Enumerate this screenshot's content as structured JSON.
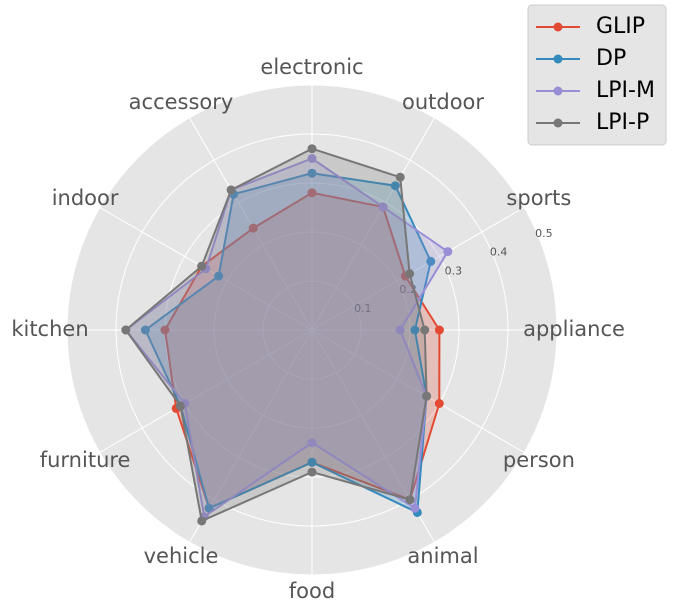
{
  "chart_data": {
    "type": "radar",
    "categories": [
      "appliance",
      "sports",
      "outdoor",
      "electronic",
      "accessory",
      "indoor",
      "kitchen",
      "furniture",
      "vehicle",
      "food",
      "animal",
      "person"
    ],
    "series": [
      {
        "name": "GLIP",
        "color": "#E24A33",
        "values": [
          0.26,
          0.22,
          0.29,
          0.28,
          0.24,
          0.26,
          0.3,
          0.32,
          0.42,
          0.27,
          0.4,
          0.3
        ]
      },
      {
        "name": "DP",
        "color": "#348ABD",
        "values": [
          0.21,
          0.28,
          0.34,
          0.32,
          0.32,
          0.22,
          0.34,
          0.31,
          0.42,
          0.27,
          0.43,
          0.27
        ]
      },
      {
        "name": "LPI-M",
        "color": "#988ED5",
        "values": [
          0.18,
          0.32,
          0.29,
          0.35,
          0.33,
          0.25,
          0.38,
          0.3,
          0.44,
          0.23,
          0.42,
          0.27
        ]
      },
      {
        "name": "LPI-P",
        "color": "#777777",
        "values": [
          0.23,
          0.23,
          0.36,
          0.37,
          0.33,
          0.26,
          0.38,
          0.31,
          0.45,
          0.29,
          0.4,
          0.27
        ]
      }
    ],
    "rlim": [
      0,
      0.5
    ],
    "rticks": [
      0.1,
      0.2,
      0.3,
      0.4,
      0.5
    ],
    "grid": true,
    "legend": "upper right"
  }
}
